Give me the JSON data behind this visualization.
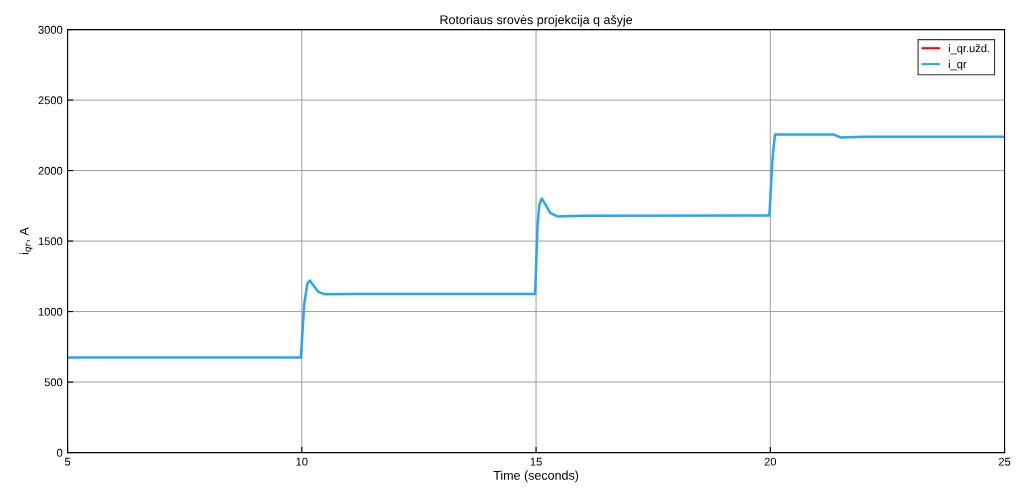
{
  "chart_data": {
    "type": "line",
    "title": "Rotoriaus srovės projekcija q ašyje",
    "xlabel": "Time (seconds)",
    "ylabel": "i$_{qr}$, A",
    "xlim": [
      5,
      25
    ],
    "ylim": [
      0,
      3000
    ],
    "xticks": [
      5,
      10,
      15,
      20,
      25
    ],
    "yticks": [
      0,
      500,
      1000,
      1500,
      2000,
      2500,
      3000
    ],
    "grid": true,
    "legend": "top right",
    "marker": "none",
    "line_style": "solid",
    "series": [
      {
        "name": "i_qr.užd.",
        "color": "#ff0000"
      },
      {
        "name": "i_qr",
        "color": "#2aa4f4",
        "x": [
          5,
          9.98,
          10.05,
          10.12,
          10.17,
          10.25,
          10.35,
          10.5,
          11,
          14.98,
          15.03,
          15.07,
          15.12,
          15.2,
          15.3,
          15.45,
          16,
          19.98,
          20.05,
          20.1,
          21.35,
          21.5,
          22,
          25
        ],
        "values": [
          675,
          675,
          1050,
          1200,
          1220,
          1185,
          1140,
          1122,
          1125,
          1125,
          1600,
          1760,
          1800,
          1760,
          1700,
          1675,
          1680,
          1682,
          2100,
          2255,
          2255,
          2235,
          2240,
          2240
        ]
      }
    ]
  }
}
